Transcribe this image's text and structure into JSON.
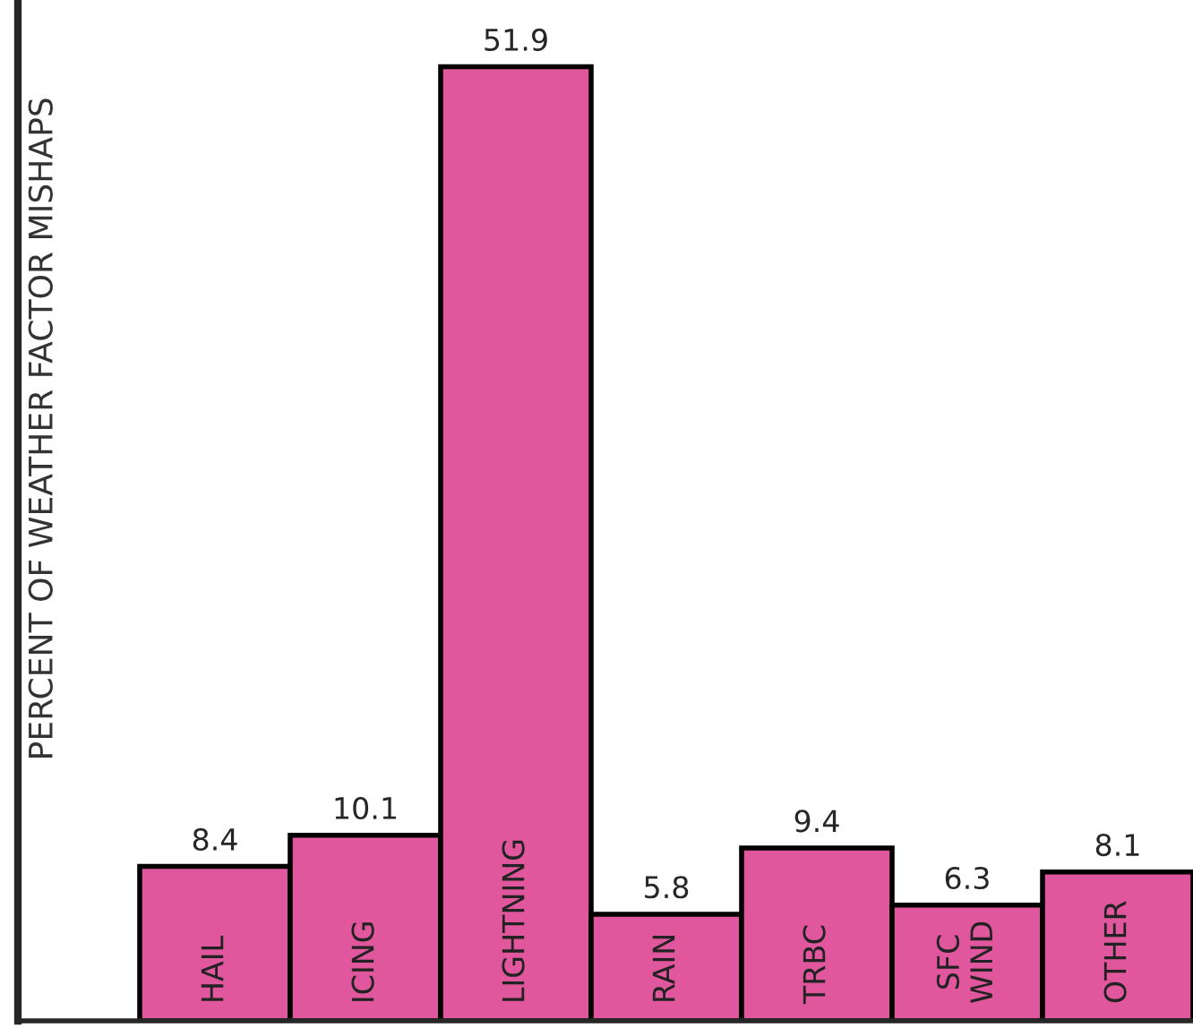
{
  "chart_data": {
    "type": "bar",
    "ylabel": "PERCENT OF WEATHER FACTOR MISHAPS",
    "categories": [
      "HAIL",
      "ICING",
      "LIGHTNING",
      "RAIN",
      "TRBC",
      "SFC\nWIND",
      "OTHER"
    ],
    "values": [
      8.4,
      10.1,
      51.9,
      5.8,
      9.4,
      6.3,
      8.1
    ],
    "color": "#e0579d",
    "data_labels": true
  }
}
